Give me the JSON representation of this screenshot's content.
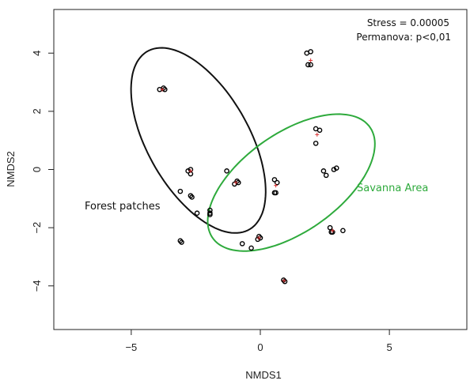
{
  "chart_data": {
    "type": "scatter",
    "xlabel": "NMDS1",
    "ylabel": "NMDS2",
    "xlim": [
      -8,
      8
    ],
    "ylim": [
      -5.5,
      5.5
    ],
    "x_ticks": [
      -5,
      0,
      5
    ],
    "y_ticks": [
      -4,
      -2,
      0,
      2,
      4
    ],
    "x_tick_labels": [
      "−5",
      "0",
      "5"
    ],
    "y_tick_labels": [
      "−4",
      "−2",
      "0",
      "2",
      "4"
    ],
    "grid": false,
    "stress_label": "Stress = 0.00005",
    "permanova_label": "Permanova: p<0,01",
    "annotations": [
      {
        "id": "forest",
        "text": "Forest patches",
        "color": "#111111"
      },
      {
        "id": "savanna",
        "text": "Savanna Area",
        "color": "#2eaa3c"
      }
    ],
    "ellipses": [
      {
        "name": "Forest patches",
        "color": "#111111",
        "cx": -2.4,
        "cy": 1.0,
        "rx": 3.65,
        "ry": 1.9,
        "angle_deg": -55
      },
      {
        "name": "Savanna Area",
        "color": "#2eaa3c",
        "cx": 1.2,
        "cy": -0.45,
        "rx": 3.6,
        "ry": 1.75,
        "angle_deg": 30
      }
    ],
    "points": [
      {
        "x": 1.8,
        "y": 4.0
      },
      {
        "x": 1.95,
        "y": 4.05
      },
      {
        "x": 1.85,
        "y": 3.6
      },
      {
        "x": 1.95,
        "y": 3.6
      },
      {
        "x": -3.9,
        "y": 2.75
      },
      {
        "x": -3.75,
        "y": 2.8
      },
      {
        "x": -3.7,
        "y": 2.75
      },
      {
        "x": 2.15,
        "y": 1.4
      },
      {
        "x": 2.3,
        "y": 1.35
      },
      {
        "x": 2.15,
        "y": 0.9
      },
      {
        "x": -2.8,
        "y": -0.05
      },
      {
        "x": -2.7,
        "y": 0.0
      },
      {
        "x": -2.7,
        "y": -0.15
      },
      {
        "x": -1.3,
        "y": -0.05
      },
      {
        "x": -0.9,
        "y": -0.4
      },
      {
        "x": -0.85,
        "y": -0.45
      },
      {
        "x": -1.0,
        "y": -0.5
      },
      {
        "x": 0.55,
        "y": -0.35
      },
      {
        "x": 0.65,
        "y": -0.45
      },
      {
        "x": 0.55,
        "y": -0.8
      },
      {
        "x": 0.6,
        "y": -0.8
      },
      {
        "x": 2.45,
        "y": -0.05
      },
      {
        "x": 2.55,
        "y": -0.2
      },
      {
        "x": 2.85,
        "y": 0.0
      },
      {
        "x": 2.95,
        "y": 0.05
      },
      {
        "x": -3.1,
        "y": -0.75
      },
      {
        "x": -2.7,
        "y": -0.9
      },
      {
        "x": -2.65,
        "y": -0.95
      },
      {
        "x": -1.95,
        "y": -1.4
      },
      {
        "x": -1.95,
        "y": -1.5
      },
      {
        "x": -2.45,
        "y": -1.5
      },
      {
        "x": -1.95,
        "y": -1.55
      },
      {
        "x": 2.7,
        "y": -2.0
      },
      {
        "x": 2.75,
        "y": -2.15
      },
      {
        "x": 2.8,
        "y": -2.15
      },
      {
        "x": 3.2,
        "y": -2.1
      },
      {
        "x": -0.05,
        "y": -2.3
      },
      {
        "x": 0.0,
        "y": -2.35
      },
      {
        "x": -0.1,
        "y": -2.4
      },
      {
        "x": -0.7,
        "y": -2.55
      },
      {
        "x": -0.35,
        "y": -2.7
      },
      {
        "x": -3.1,
        "y": -2.45
      },
      {
        "x": -3.05,
        "y": -2.5
      },
      {
        "x": 0.9,
        "y": -3.8
      },
      {
        "x": 0.95,
        "y": -3.85
      }
    ],
    "centroids": [
      {
        "x": 1.95,
        "y": 3.75
      },
      {
        "x": -3.8,
        "y": 2.75
      },
      {
        "x": 2.2,
        "y": 1.2
      },
      {
        "x": -0.95,
        "y": -0.45
      },
      {
        "x": 0.6,
        "y": -0.55
      },
      {
        "x": -2.7,
        "y": -0.05
      },
      {
        "x": 2.8,
        "y": -2.1
      },
      {
        "x": -0.05,
        "y": -2.35
      },
      {
        "x": 0.92,
        "y": -3.82
      }
    ],
    "colors": {
      "points": "#000000",
      "centroid": "#d93030",
      "forest": "#111111",
      "savanna": "#2eaa3c"
    }
  }
}
